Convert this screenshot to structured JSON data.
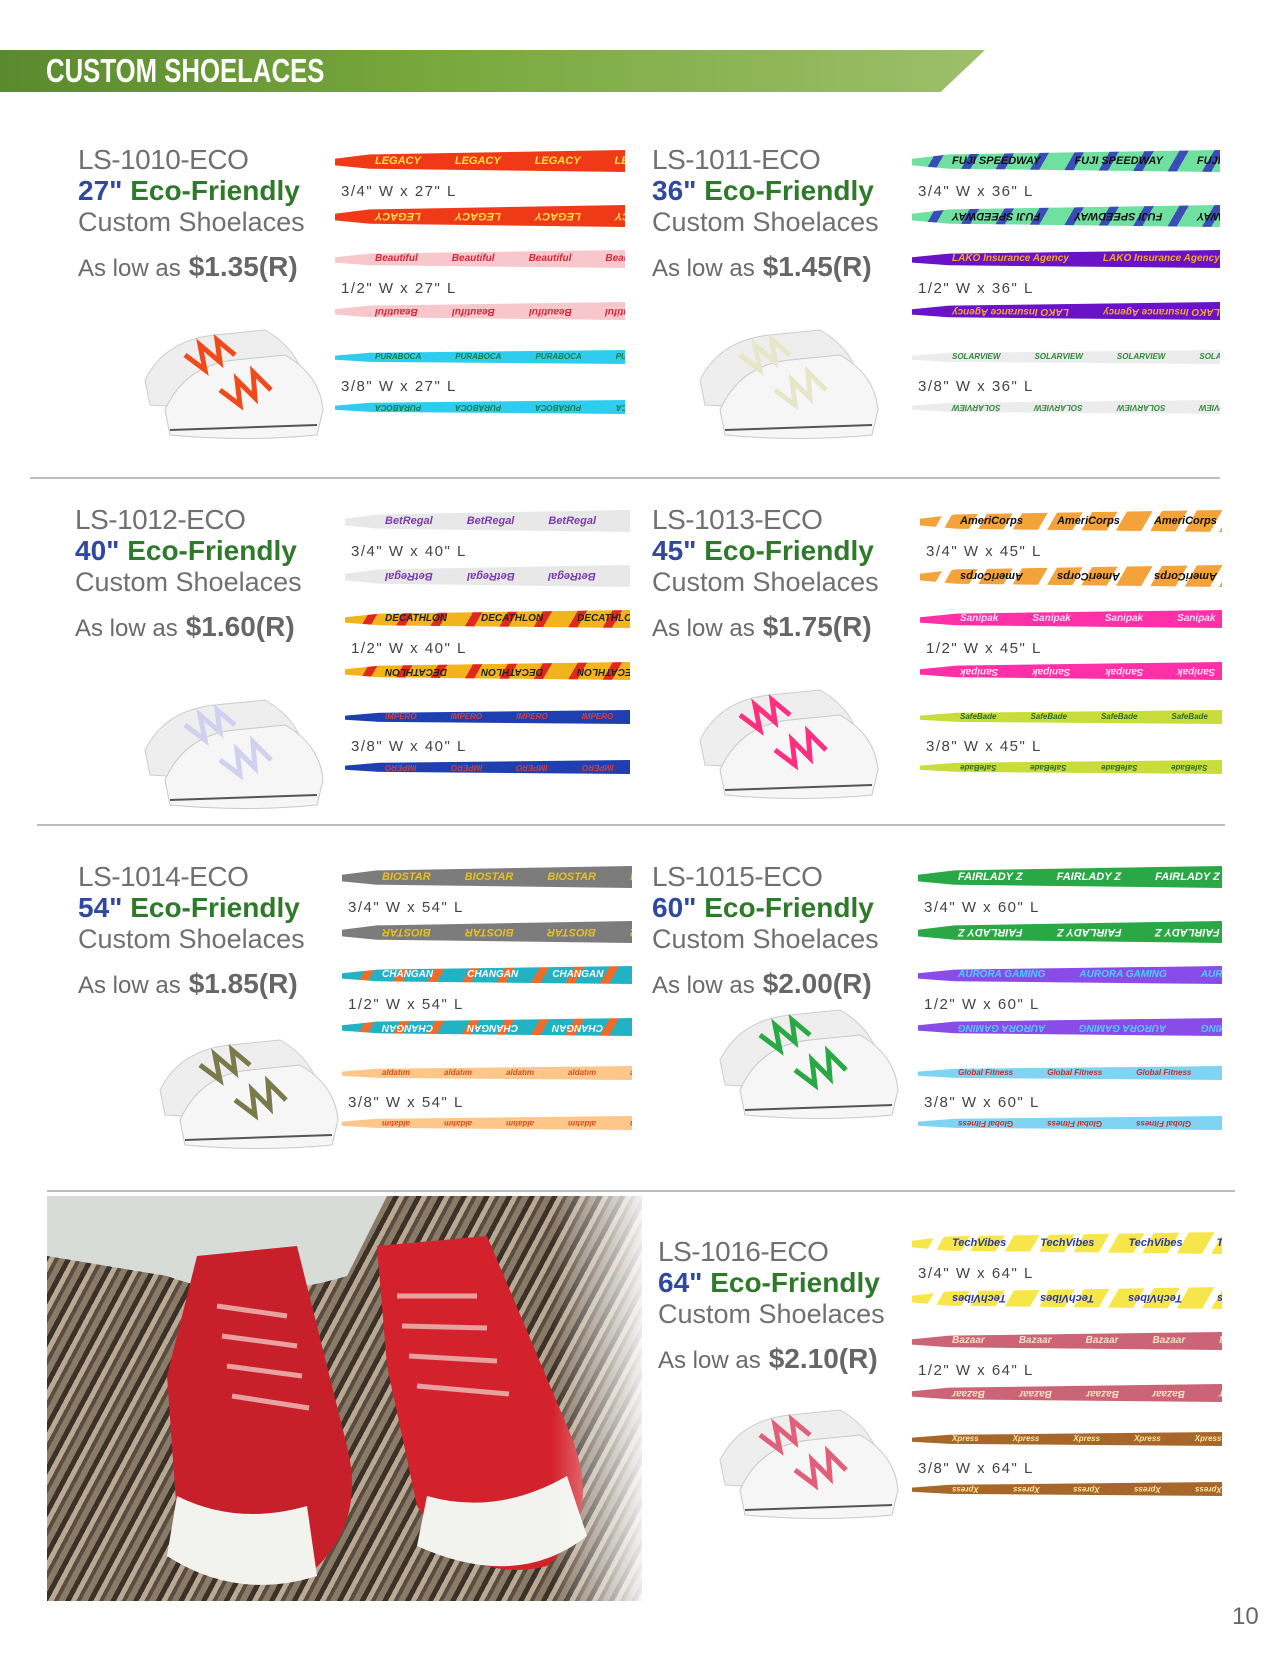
{
  "header": {
    "title": "CUSTOM SHOELACES"
  },
  "page_number": "10",
  "common": {
    "eco": "Eco-Friendly",
    "sub": "Custom Shoelaces",
    "as_low_as": "As low as"
  },
  "products": [
    {
      "sku": "LS-1010-ECO",
      "length": "27\"",
      "price": "$1.35(R)",
      "sizes": [
        "3/4\" W x 27\" L",
        "1/2\" W x 27\" L",
        "3/8\" W x 27\" L"
      ],
      "laces": [
        {
          "logo": "LEGACY",
          "bg": "#f03a17",
          "fg": "#ffe04a"
        },
        {
          "logo": "Beautiful",
          "bg": "#f8c7cb",
          "fg": "#d0283a"
        },
        {
          "logo": "PURABOCA",
          "bg": "#2ecdf0",
          "fg": "#1a7a3a"
        }
      ],
      "lace_color": "#f04a1a"
    },
    {
      "sku": "LS-1011-ECO",
      "length": "36\"",
      "price": "$1.45(R)",
      "sizes": [
        "3/4\" W x 36\" L",
        "1/2\" W x 36\" L",
        "3/8\" W x 36\" L"
      ],
      "laces": [
        {
          "logo": "FUJI SPEEDWAY",
          "bg": "#6fe0a0",
          "fg": "#111",
          "stripe": "#3b4cb8"
        },
        {
          "logo": "LAKO Insurance Agency",
          "bg": "#6a12c8",
          "fg": "#f6a623"
        },
        {
          "logo": "SOLARVIEW",
          "bg": "#ececec",
          "fg": "#2e8a3a"
        }
      ],
      "lace_color": "#e6e6c8"
    },
    {
      "sku": "LS-1012-ECO",
      "length": "40\"",
      "price": "$1.60(R)",
      "sizes": [
        "3/4\" W x 40\" L",
        "1/2\" W x 40\" L",
        "3/8\" W x 40\" L"
      ],
      "laces": [
        {
          "logo": "BetRegal",
          "bg": "#e8e8e8",
          "fg": "#7a3bb0"
        },
        {
          "logo": "DECATHLON",
          "bg": "#f2b41c",
          "fg": "#222",
          "stripe": "#e0281e"
        },
        {
          "logo": "IMPERO",
          "bg": "#1f3fb0",
          "fg": "#d04040"
        }
      ],
      "lace_color": "#d0d0f0"
    },
    {
      "sku": "LS-1013-ECO",
      "length": "45\"",
      "price": "$1.75(R)",
      "sizes": [
        "3/4\" W x 45\" L",
        "1/2\" W x 45\" L",
        "3/8\" W x 45\" L"
      ],
      "laces": [
        {
          "logo": "AmeriCorps",
          "bg": "#f4a23a",
          "fg": "#111",
          "stripe": "#fff"
        },
        {
          "logo": "Sanipak",
          "bg": "#ff2fa8",
          "fg": "#ffe0f0"
        },
        {
          "logo": "SafeBade",
          "bg": "#c8dc3c",
          "fg": "#2a6a2a"
        }
      ],
      "lace_color": "#ff2f80"
    },
    {
      "sku": "LS-1014-ECO",
      "length": "54\"",
      "price": "$1.85(R)",
      "sizes": [
        "3/4\" W x 54\" L",
        "1/2\" W x 54\" L",
        "3/8\" W x 54\" L"
      ],
      "laces": [
        {
          "logo": "BIOSTAR",
          "bg": "#7c7c7c",
          "fg": "#e8c020"
        },
        {
          "logo": "CHANGAN",
          "bg": "#21b3c4",
          "fg": "#fff",
          "stripe": "#f06a2a"
        },
        {
          "logo": "aldatım",
          "bg": "#ffc68a",
          "fg": "#d05020"
        }
      ],
      "lace_color": "#7a7a4a"
    },
    {
      "sku": "LS-1015-ECO",
      "length": "60\"",
      "price": "$2.00(R)",
      "sizes": [
        "3/4\" W x 60\" L",
        "1/2\" W x 60\" L",
        "3/8\" W x 60\" L"
      ],
      "laces": [
        {
          "logo": "FAIRLADY Z",
          "bg": "#2aa845",
          "fg": "#fff"
        },
        {
          "logo": "AURORA GAMING",
          "bg": "#8a4ce8",
          "fg": "#4ad0ff"
        },
        {
          "logo": "Global Fitness",
          "bg": "#7fd4f4",
          "fg": "#c03030"
        }
      ],
      "lace_color": "#2aa845"
    },
    {
      "sku": "LS-1016-ECO",
      "length": "64\"",
      "price": "$2.10(R)",
      "sizes": [
        "3/4\" W x 64\" L",
        "1/2\" W x 64\" L",
        "3/8\" W x 64\" L"
      ],
      "laces": [
        {
          "logo": "TechVibes",
          "bg": "#f7e64a",
          "fg": "#2a3aa0",
          "stripe": "#fff"
        },
        {
          "logo": "Bazaar",
          "bg": "#cc6478",
          "fg": "#f6e0c0"
        },
        {
          "logo": "Xpress",
          "bg": "#a8672a",
          "fg": "#f6e6a0"
        }
      ],
      "lace_color": "#e0607a"
    }
  ]
}
